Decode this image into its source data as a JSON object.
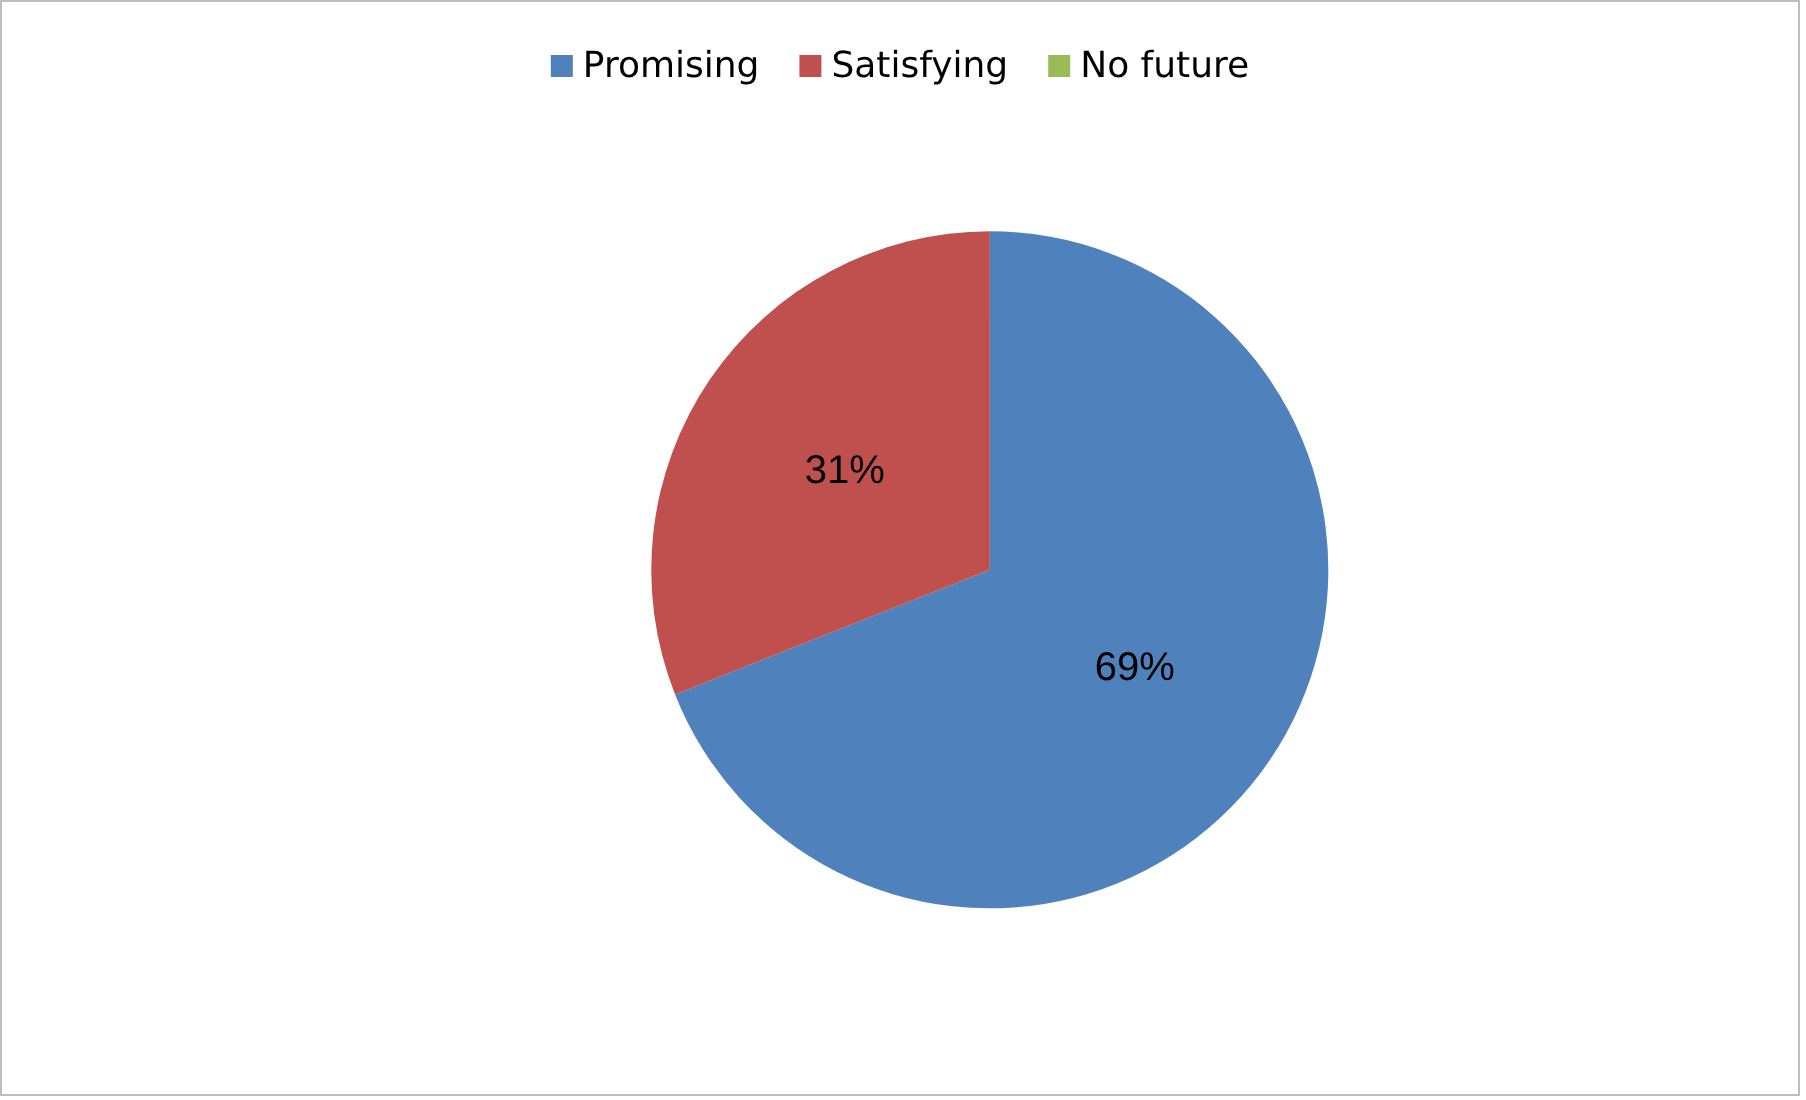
{
  "chart_data": {
    "type": "pie",
    "categories": [
      "Promising",
      "Satisfying",
      "No future"
    ],
    "values": [
      69,
      31,
      0
    ],
    "colors": [
      "#4f81bd",
      "#c0504d",
      "#9bbb59"
    ],
    "value_labels": [
      "69%",
      "31%",
      null
    ],
    "legend": "top"
  }
}
